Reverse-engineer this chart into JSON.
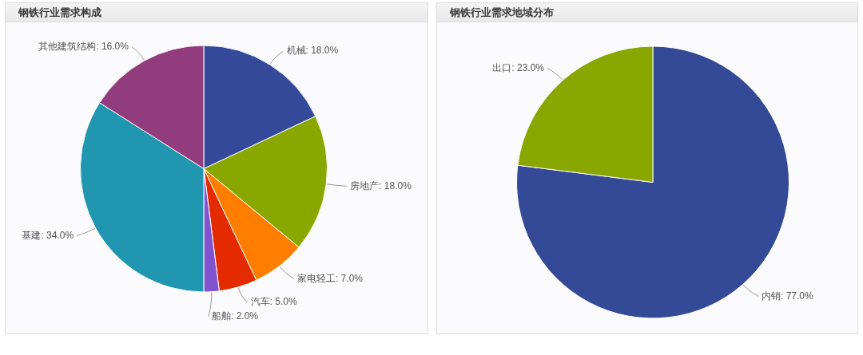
{
  "chart_data": [
    {
      "type": "pie",
      "title": "钢铁行业需求构成",
      "categories": [
        "机械",
        "房地产",
        "家电轻工",
        "汽车",
        "船舶",
        "基建",
        "其他建筑结构"
      ],
      "values": [
        18,
        18,
        7,
        5,
        2,
        34,
        16
      ],
      "colors": [
        "#34499a",
        "#8aa700",
        "#ff7e00",
        "#e42b00",
        "#8152d0",
        "#2196b1",
        "#923b7d"
      ],
      "value_labels": [
        "18.0%",
        "18.0%",
        "7.0%",
        "5.0%",
        "2.0%",
        "34.0%",
        "16.0%"
      ]
    },
    {
      "type": "pie",
      "title": "钢铁行业需求地域分布",
      "categories": [
        "内销",
        "出口"
      ],
      "values": [
        77,
        23
      ],
      "colors": [
        "#354a97",
        "#8aa600"
      ],
      "value_labels": [
        "77.0%",
        "23.0%"
      ]
    }
  ]
}
